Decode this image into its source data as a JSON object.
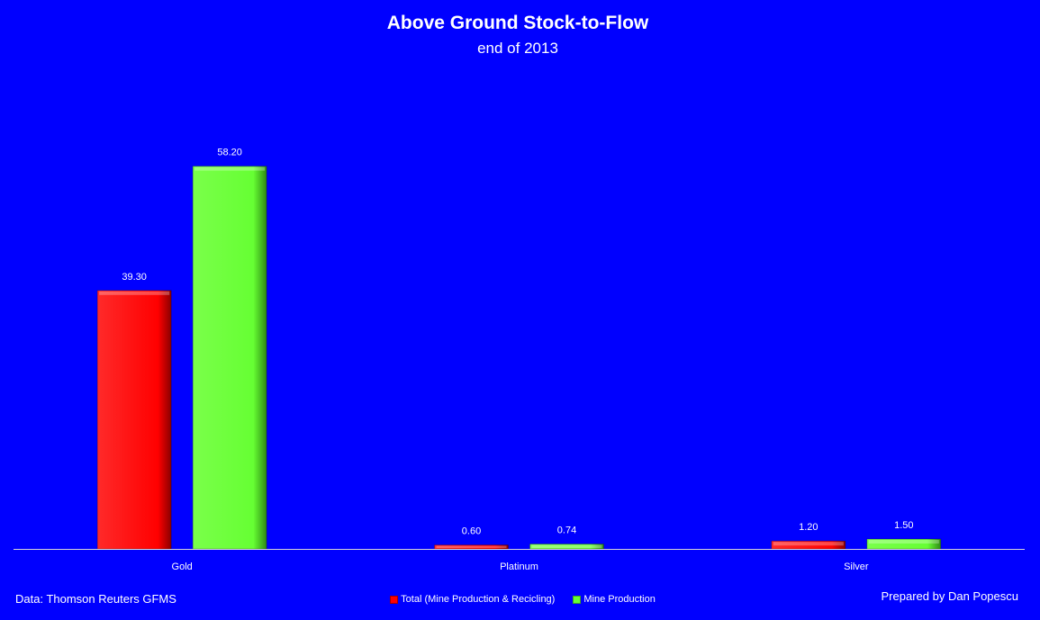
{
  "chart_data": {
    "type": "bar",
    "title": "Above Ground Stock-to-Flow",
    "subtitle": "end of 2013",
    "categories": [
      "Gold",
      "Platinum",
      "Silver"
    ],
    "series": [
      {
        "name": "Total (Mine Production & Recicling)",
        "values": [
          39.3,
          0.6,
          1.2
        ],
        "labels": [
          "39.30",
          "0.60",
          "1.20"
        ],
        "color": "#ff0000"
      },
      {
        "name": "Mine Production",
        "values": [
          58.2,
          0.74,
          1.5
        ],
        "labels": [
          "58.20",
          "0.74",
          "1.50"
        ],
        "color": "#66ff33"
      }
    ],
    "ylim": [
      0,
      65
    ],
    "grid": false,
    "legend_position": "bottom"
  },
  "footer": {
    "source": "Data: Thomson Reuters GFMS",
    "credit": "Prepared by Dan Popescu"
  },
  "colors": {
    "background": "#0000ff",
    "text": "#ffffff"
  }
}
